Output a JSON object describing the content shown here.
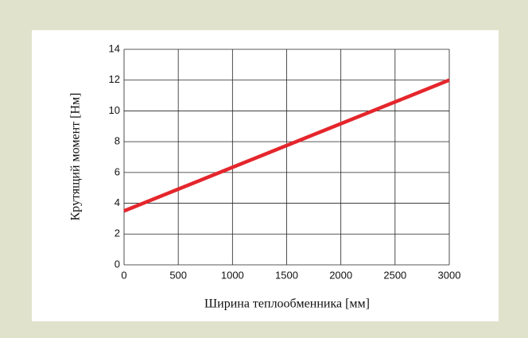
{
  "chart_data": {
    "type": "line",
    "x_label": "Ширина теплообменника [мм]",
    "y_label": "Крутящий момент [Нм]",
    "x": [
      0,
      3000
    ],
    "series": [
      {
        "name": null,
        "color": "#e4262c",
        "values": [
          3.5,
          12
        ]
      }
    ],
    "xlim": [
      0,
      3000
    ],
    "xticks": [
      0,
      500,
      1000,
      1500,
      2000,
      2500,
      3000
    ],
    "ylim": [
      0,
      14
    ],
    "yticks": [
      0,
      2,
      4,
      6,
      8,
      10,
      12,
      14
    ],
    "grid": true
  }
}
